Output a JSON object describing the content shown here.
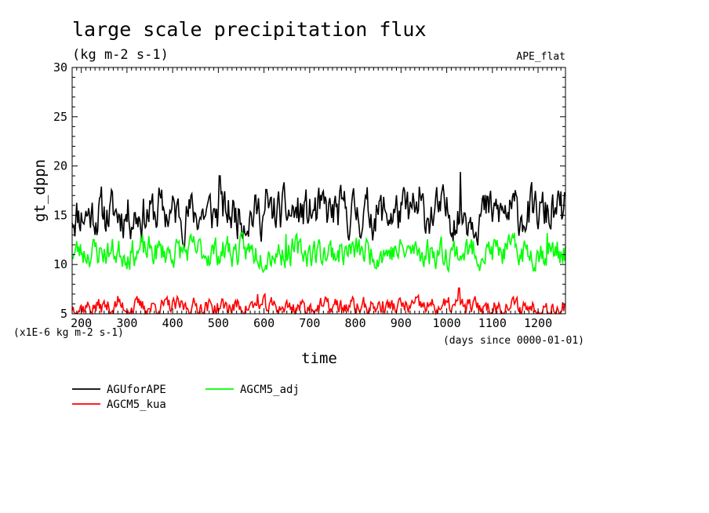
{
  "chart_data": {
    "type": "line",
    "title": "large scale precipitation flux",
    "subtitle": "(kg m-2 s-1)",
    "experiment": "APE_flat",
    "xlabel": "time",
    "ylabel": "gt_dppn",
    "yunits": "(x1E-6 kg m-2 s-1)",
    "xunits": "(days since 0000-01-01)",
    "xlim": [
      180,
      1260
    ],
    "ylim": [
      5,
      30
    ],
    "xticks": [
      200,
      300,
      400,
      500,
      600,
      700,
      800,
      900,
      1000,
      1100,
      1200
    ],
    "yticks": [
      5,
      10,
      15,
      20,
      25,
      30
    ],
    "legend_position": "bottom-left",
    "series": [
      {
        "name": "AGUforAPE",
        "color": "#000000",
        "mean": 15.2,
        "amplitude": 1.9,
        "seed": 11,
        "spikes": [
          [
            503,
            19.0
          ],
          [
            1030,
            19.4
          ],
          [
            370,
            17.8
          ],
          [
            605,
            17.6
          ],
          [
            940,
            17.9
          ]
        ]
      },
      {
        "name": "AGCM5_adj",
        "color": "#00ff00",
        "mean": 11.3,
        "amplitude": 1.25,
        "seed": 23,
        "spikes": [
          [
            648,
            13.1
          ],
          [
            1220,
            13.2
          ],
          [
            520,
            12.9
          ]
        ]
      },
      {
        "name": "AGCM5_kua",
        "color": "#ff0000",
        "mean": 5.7,
        "amplitude": 0.75,
        "seed": 37,
        "spikes": [
          [
            1027,
            7.6
          ],
          [
            586,
            7.0
          ],
          [
            280,
            6.8
          ]
        ]
      }
    ]
  }
}
